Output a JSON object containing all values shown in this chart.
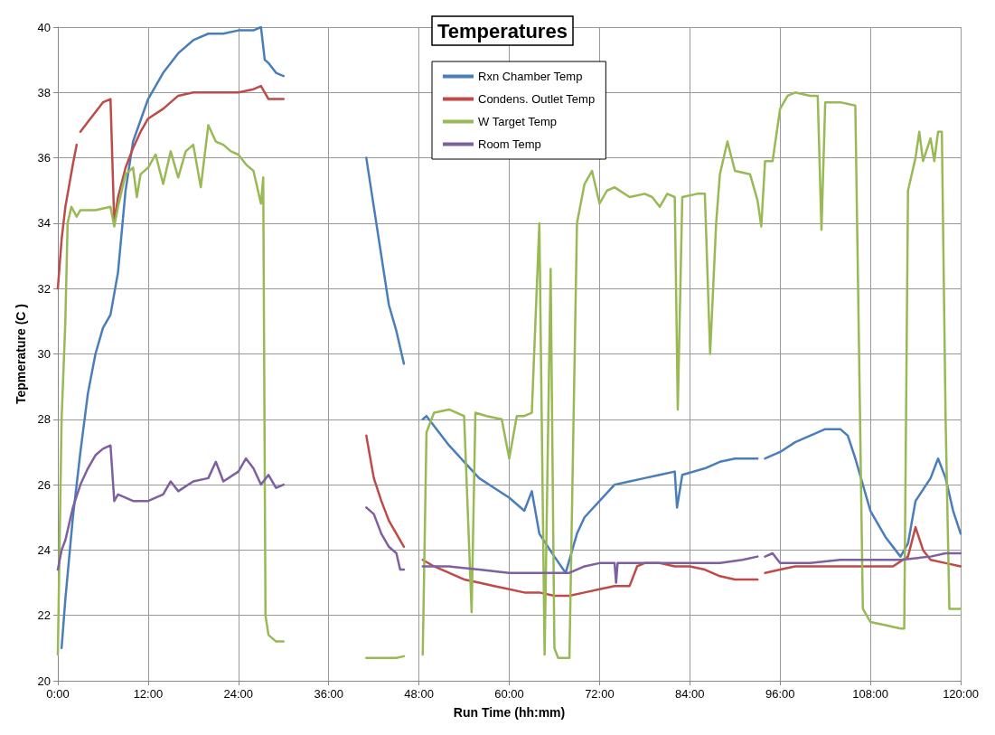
{
  "chart_data": {
    "type": "line",
    "title": "Temperatures",
    "xlabel": "Run Time (hh:mm)",
    "ylabel": "Tepmerature (C )",
    "xlim": [
      0,
      120
    ],
    "xticks": [
      {
        "value": 0,
        "label": "0:00"
      },
      {
        "value": 12,
        "label": "12:00"
      },
      {
        "value": 24,
        "label": "24:00"
      },
      {
        "value": 36,
        "label": "36:00"
      },
      {
        "value": 48,
        "label": "48:00"
      },
      {
        "value": 60,
        "label": "60:00"
      },
      {
        "value": 72,
        "label": "72:00"
      },
      {
        "value": 84,
        "label": "84:00"
      },
      {
        "value": 96,
        "label": "96:00"
      },
      {
        "value": 108,
        "label": "108:00"
      },
      {
        "value": 120,
        "label": "120:00"
      }
    ],
    "ylim": [
      20,
      40
    ],
    "yticks": [
      20,
      22,
      24,
      26,
      28,
      30,
      32,
      34,
      36,
      38,
      40
    ],
    "grid": true,
    "legend": "top",
    "marker": "none",
    "line_style": "solid",
    "series": [
      {
        "name": "Rxn Chamber Temp",
        "color": "#4a7ebb",
        "x": [
          0.5,
          1,
          2,
          3,
          4,
          5,
          6,
          7,
          8,
          9,
          10,
          12,
          14,
          16,
          18,
          20,
          22,
          24,
          26,
          27,
          27.5,
          28,
          29,
          30,
          35,
          41,
          42,
          43,
          44,
          45,
          46,
          47.5,
          48.5,
          49,
          52,
          54,
          56,
          58,
          60,
          62,
          63,
          64,
          66,
          67.5,
          69,
          70,
          72,
          74,
          76,
          78,
          80,
          82,
          82.3,
          83,
          86,
          88,
          90,
          93,
          93.5,
          94,
          96,
          98,
          100,
          102,
          104,
          105,
          106,
          108,
          110,
          112,
          113,
          114,
          116,
          117,
          118,
          119,
          120
        ],
        "values": [
          21,
          22.5,
          25,
          27,
          28.8,
          30,
          30.8,
          31.2,
          32.5,
          35,
          36.5,
          37.8,
          38.6,
          39.2,
          39.6,
          39.8,
          39.8,
          39.9,
          39.9,
          40,
          39,
          38.9,
          38.6,
          38.5,
          null,
          36,
          34.5,
          33,
          31.5,
          30.7,
          29.7,
          null,
          28,
          28.1,
          27.2,
          26.7,
          26.2,
          25.9,
          25.6,
          25.2,
          25.8,
          24.5,
          23.8,
          23.3,
          24.5,
          25,
          25.5,
          26,
          26.1,
          26.2,
          26.3,
          26.4,
          25.3,
          26.3,
          26.5,
          26.7,
          26.8,
          26.8,
          null,
          26.8,
          27,
          27.3,
          27.5,
          27.7,
          27.7,
          27.5,
          26.8,
          25.2,
          24.4,
          23.8,
          24.2,
          25.5,
          26.2,
          26.8,
          26.2,
          25.2,
          24.5
        ]
      },
      {
        "name": "Condens. Outlet Temp",
        "color": "#be4b48",
        "x": [
          0,
          0.5,
          1,
          2,
          2.5,
          2.7,
          3,
          4,
          5,
          6,
          7,
          7.5,
          8,
          9,
          10,
          11,
          12,
          14,
          16,
          18,
          20,
          22,
          24,
          26,
          27,
          28,
          30,
          35,
          41,
          42,
          43,
          44,
          45,
          46,
          47.5,
          48.5,
          50,
          52,
          54,
          56,
          58,
          60,
          62,
          64,
          66,
          68,
          70,
          72,
          74,
          76,
          77,
          78,
          80,
          82,
          84,
          86,
          88,
          90,
          93,
          93.5,
          94,
          96,
          98,
          100,
          104,
          108,
          111,
          113,
          114,
          115,
          116,
          118,
          120
        ],
        "values": [
          32,
          33.5,
          34.5,
          35.8,
          36.4,
          null,
          36.8,
          37.1,
          37.4,
          37.7,
          37.8,
          34,
          34.8,
          35.7,
          36.3,
          36.8,
          37.2,
          37.5,
          37.9,
          38,
          38,
          38,
          38,
          38.1,
          38.2,
          37.8,
          37.8,
          null,
          27.5,
          26.2,
          25.5,
          24.9,
          24.5,
          24.1,
          null,
          23.7,
          23.5,
          23.3,
          23.1,
          23,
          22.9,
          22.8,
          22.7,
          22.7,
          22.6,
          22.6,
          22.7,
          22.8,
          22.9,
          22.9,
          23.5,
          23.6,
          23.6,
          23.5,
          23.5,
          23.4,
          23.2,
          23.1,
          23.1,
          null,
          23.3,
          23.4,
          23.5,
          23.5,
          23.5,
          23.5,
          23.5,
          23.8,
          24.7,
          24,
          23.7,
          23.6,
          23.5
        ]
      },
      {
        "name": "W Target Temp",
        "color": "#98b954",
        "x": [
          0,
          0.5,
          1,
          1.3,
          1.8,
          2.5,
          3,
          5,
          7,
          7.5,
          8,
          9,
          10,
          10.5,
          11,
          12,
          13,
          14,
          15,
          16,
          17,
          18,
          19,
          20,
          21,
          22,
          23,
          24,
          25,
          26,
          27,
          27.3,
          27.6,
          28,
          29,
          30,
          35,
          41,
          43,
          45,
          46,
          47.5,
          48.5,
          49,
          50,
          52,
          54,
          55,
          55.5,
          57,
          59,
          60,
          61,
          62,
          63,
          64,
          64.7,
          65.5,
          66,
          66.5,
          68,
          69,
          70,
          71,
          72,
          73,
          74,
          76,
          78,
          79,
          80,
          81,
          82,
          82.4,
          83,
          85,
          86,
          86.7,
          87.5,
          88,
          89,
          90,
          92,
          93,
          93.5,
          94,
          95,
          96,
          97,
          98,
          100,
          101,
          101.5,
          102,
          104,
          106,
          106.5,
          107,
          108,
          110,
          112,
          112.5,
          113,
          114,
          114.5,
          115,
          116,
          116.5,
          117,
          117.5,
          118,
          118.5,
          120
        ],
        "values": [
          20.8,
          28,
          31,
          34,
          34.5,
          34.2,
          34.4,
          34.4,
          34.5,
          33.9,
          34.5,
          35.5,
          35.7,
          34.8,
          35.5,
          35.7,
          36.1,
          35.2,
          36.2,
          35.4,
          36.2,
          36.4,
          35.1,
          37,
          36.5,
          36.4,
          36.2,
          36.1,
          35.8,
          35.6,
          34.6,
          35.4,
          22,
          21.4,
          21.2,
          21.2,
          null,
          20.7,
          20.7,
          20.7,
          20.75,
          null,
          20.8,
          27.6,
          28.2,
          28.3,
          28.1,
          22.1,
          28.2,
          28.1,
          28,
          26.8,
          28.1,
          28.1,
          28.2,
          34,
          20.8,
          32.6,
          21,
          20.7,
          20.7,
          34,
          35.2,
          35.6,
          34.6,
          35,
          35.1,
          34.8,
          34.9,
          34.8,
          34.5,
          34.9,
          34.8,
          28.3,
          34.8,
          34.9,
          34.9,
          30,
          34,
          35.5,
          36.5,
          35.6,
          35.5,
          34.7,
          33.9,
          35.9,
          35.9,
          37.5,
          37.9,
          38,
          37.9,
          37.9,
          33.8,
          37.7,
          37.7,
          37.6,
          30,
          22.2,
          21.8,
          21.7,
          21.6,
          21.6,
          35,
          36,
          36.8,
          35.9,
          36.6,
          35.9,
          36.8,
          36.8,
          28,
          22.2,
          22.2
        ]
      },
      {
        "name": "Room Temp",
        "color": "#7d60a0",
        "x": [
          0,
          0.5,
          1,
          2,
          3,
          4,
          5,
          6,
          7,
          7.5,
          8,
          10,
          12,
          14,
          15,
          16,
          18,
          20,
          21,
          22,
          24,
          25,
          26,
          27,
          28,
          29,
          30,
          35,
          41,
          42,
          43,
          44,
          45,
          45.5,
          46,
          47.5,
          48.5,
          52,
          56,
          60,
          64,
          68,
          70,
          72,
          74,
          74.2,
          74.4,
          78,
          84,
          88,
          91,
          93,
          93.5,
          94,
          95,
          96,
          100,
          104,
          108,
          112,
          116,
          118,
          120
        ],
        "values": [
          23.4,
          24,
          24.3,
          25.3,
          26,
          26.5,
          26.9,
          27.1,
          27.2,
          25.5,
          25.7,
          25.5,
          25.5,
          25.7,
          26.1,
          25.8,
          26.1,
          26.2,
          26.7,
          26.1,
          26.4,
          26.8,
          26.5,
          26,
          26.3,
          25.9,
          26,
          null,
          25.3,
          25.1,
          24.5,
          24.1,
          23.9,
          23.4,
          23.4,
          null,
          23.5,
          23.5,
          23.4,
          23.3,
          23.3,
          23.3,
          23.5,
          23.6,
          23.6,
          23,
          23.6,
          23.6,
          23.6,
          23.6,
          23.7,
          23.8,
          null,
          23.8,
          23.9,
          23.6,
          23.6,
          23.7,
          23.7,
          23.7,
          23.8,
          23.9,
          23.9
        ]
      }
    ]
  }
}
